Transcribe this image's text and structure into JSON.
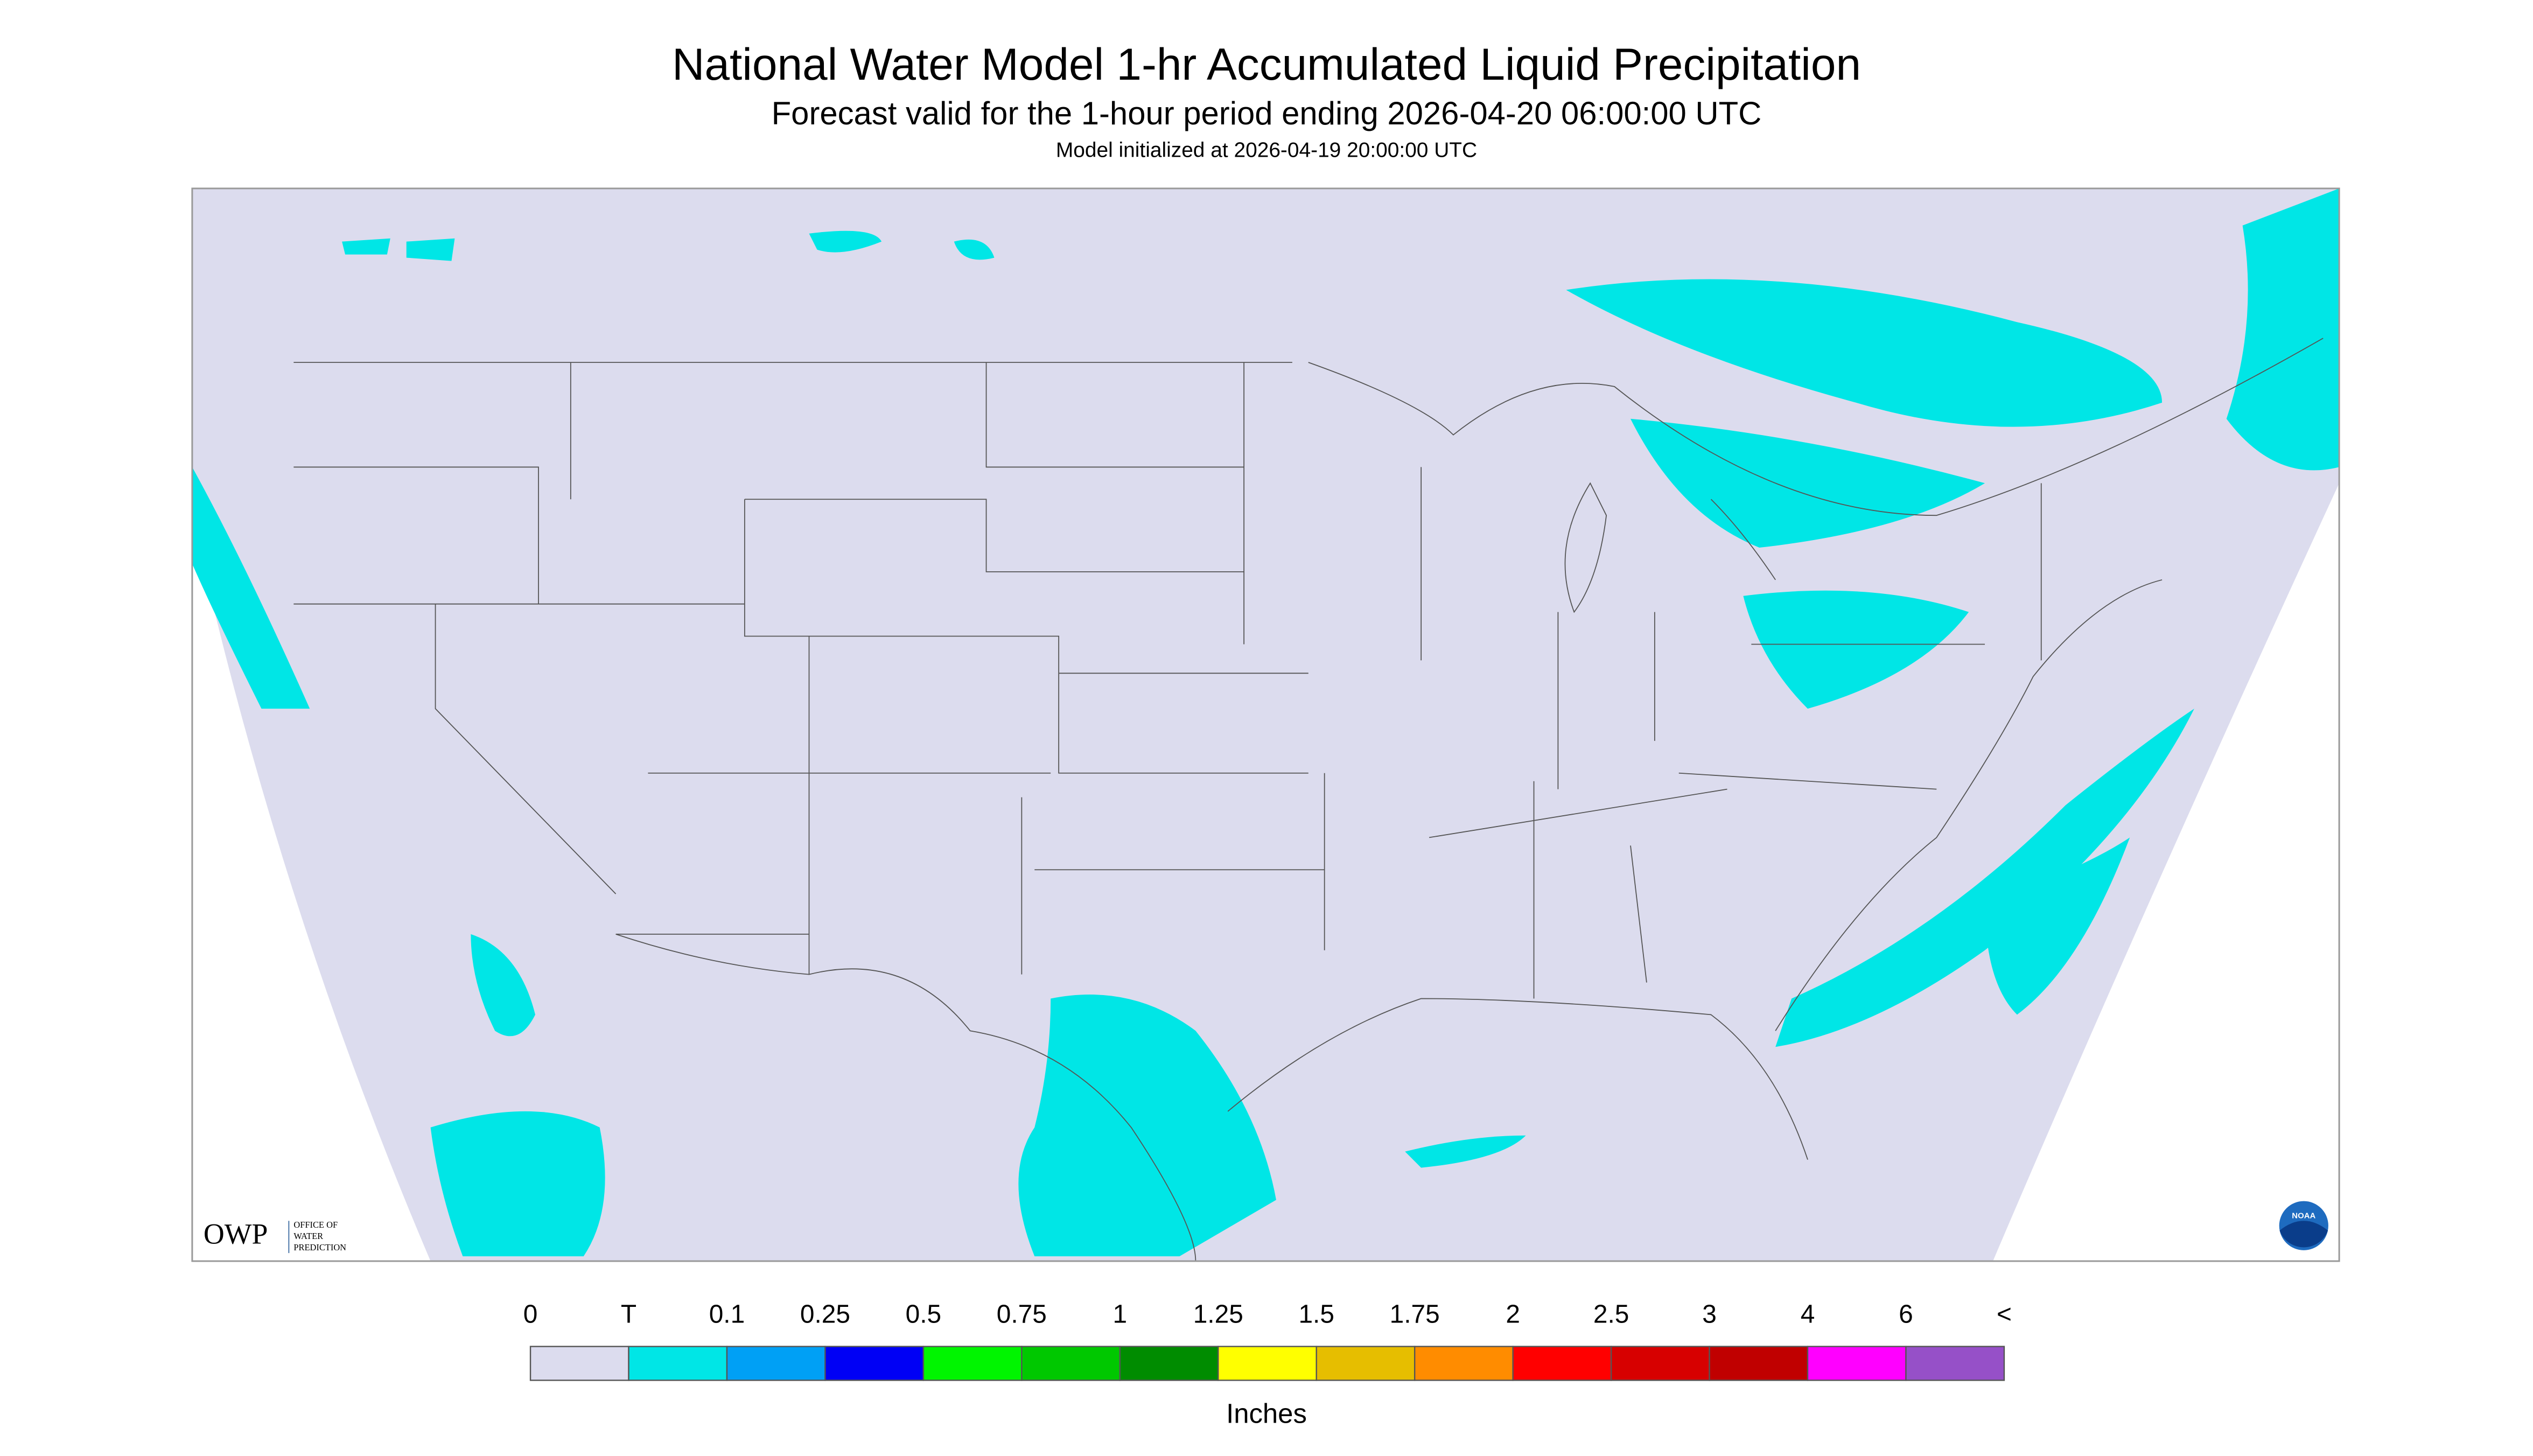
{
  "header": {
    "title": "National Water Model 1-hr Accumulated Liquid Precipitation",
    "subtitle": "Forecast valid for the 1-hour period ending 2026-04-20 06:00:00 UTC",
    "init": "Model initialized at 2026-04-19 20:00:00 UTC"
  },
  "logos": {
    "owp": "OWP",
    "owp_text": [
      "OFFICE OF",
      "WATER",
      "PREDICTION"
    ],
    "noaa": "NOAA"
  },
  "legend": {
    "labels": [
      "0",
      "T",
      "0.1",
      "0.25",
      "0.5",
      "0.75",
      "1",
      "1.25",
      "1.5",
      "1.75",
      "2",
      "2.5",
      "3",
      "4",
      "6",
      "<"
    ],
    "colors": [
      "#dcdcee",
      "#00e6e6",
      "#00a0f5",
      "#0000f5",
      "#00f500",
      "#00c800",
      "#008c00",
      "#ffff00",
      "#e6be00",
      "#ff8c00",
      "#ff0000",
      "#d70000",
      "#c00000",
      "#ff00ff",
      "#9650c8"
    ],
    "unit": "Inches"
  }
}
